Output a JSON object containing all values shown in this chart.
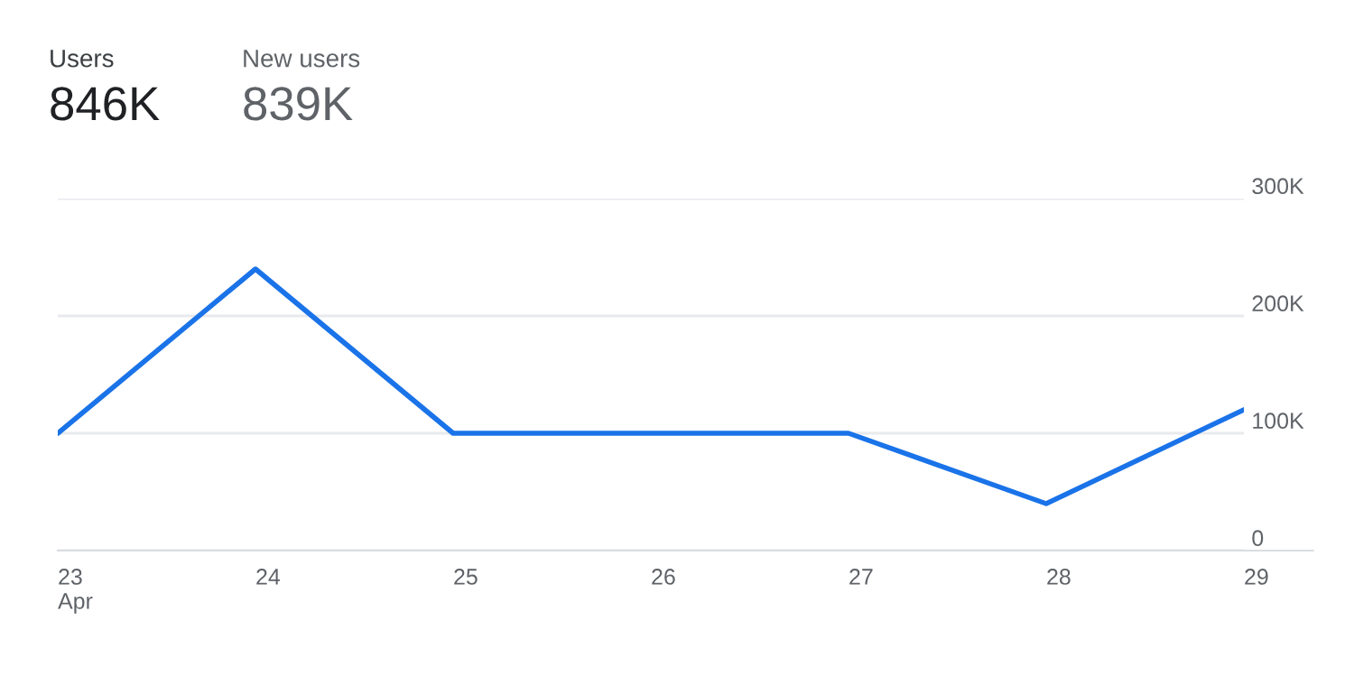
{
  "chart_data": {
    "type": "line",
    "annotations": [
      "Users",
      "846K",
      "New users",
      "839K"
    ],
    "categories": [
      "23\nApr",
      "24",
      "25",
      "26",
      "27",
      "28",
      "29"
    ],
    "series": [
      {
        "color": "#1a73e8",
        "values": [
          100000,
          240000,
          100000,
          100000,
          100000,
          40000,
          120000
        ]
      }
    ],
    "ylim": [
      0,
      300000
    ],
    "yticks": [
      {
        "value": 0,
        "label": "0"
      },
      {
        "value": 100000,
        "label": "100K"
      },
      {
        "value": 200000,
        "label": "200K"
      },
      {
        "value": 300000,
        "label": "300K"
      }
    ],
    "grid": "y",
    "marker": "none",
    "line_style": "solid"
  }
}
